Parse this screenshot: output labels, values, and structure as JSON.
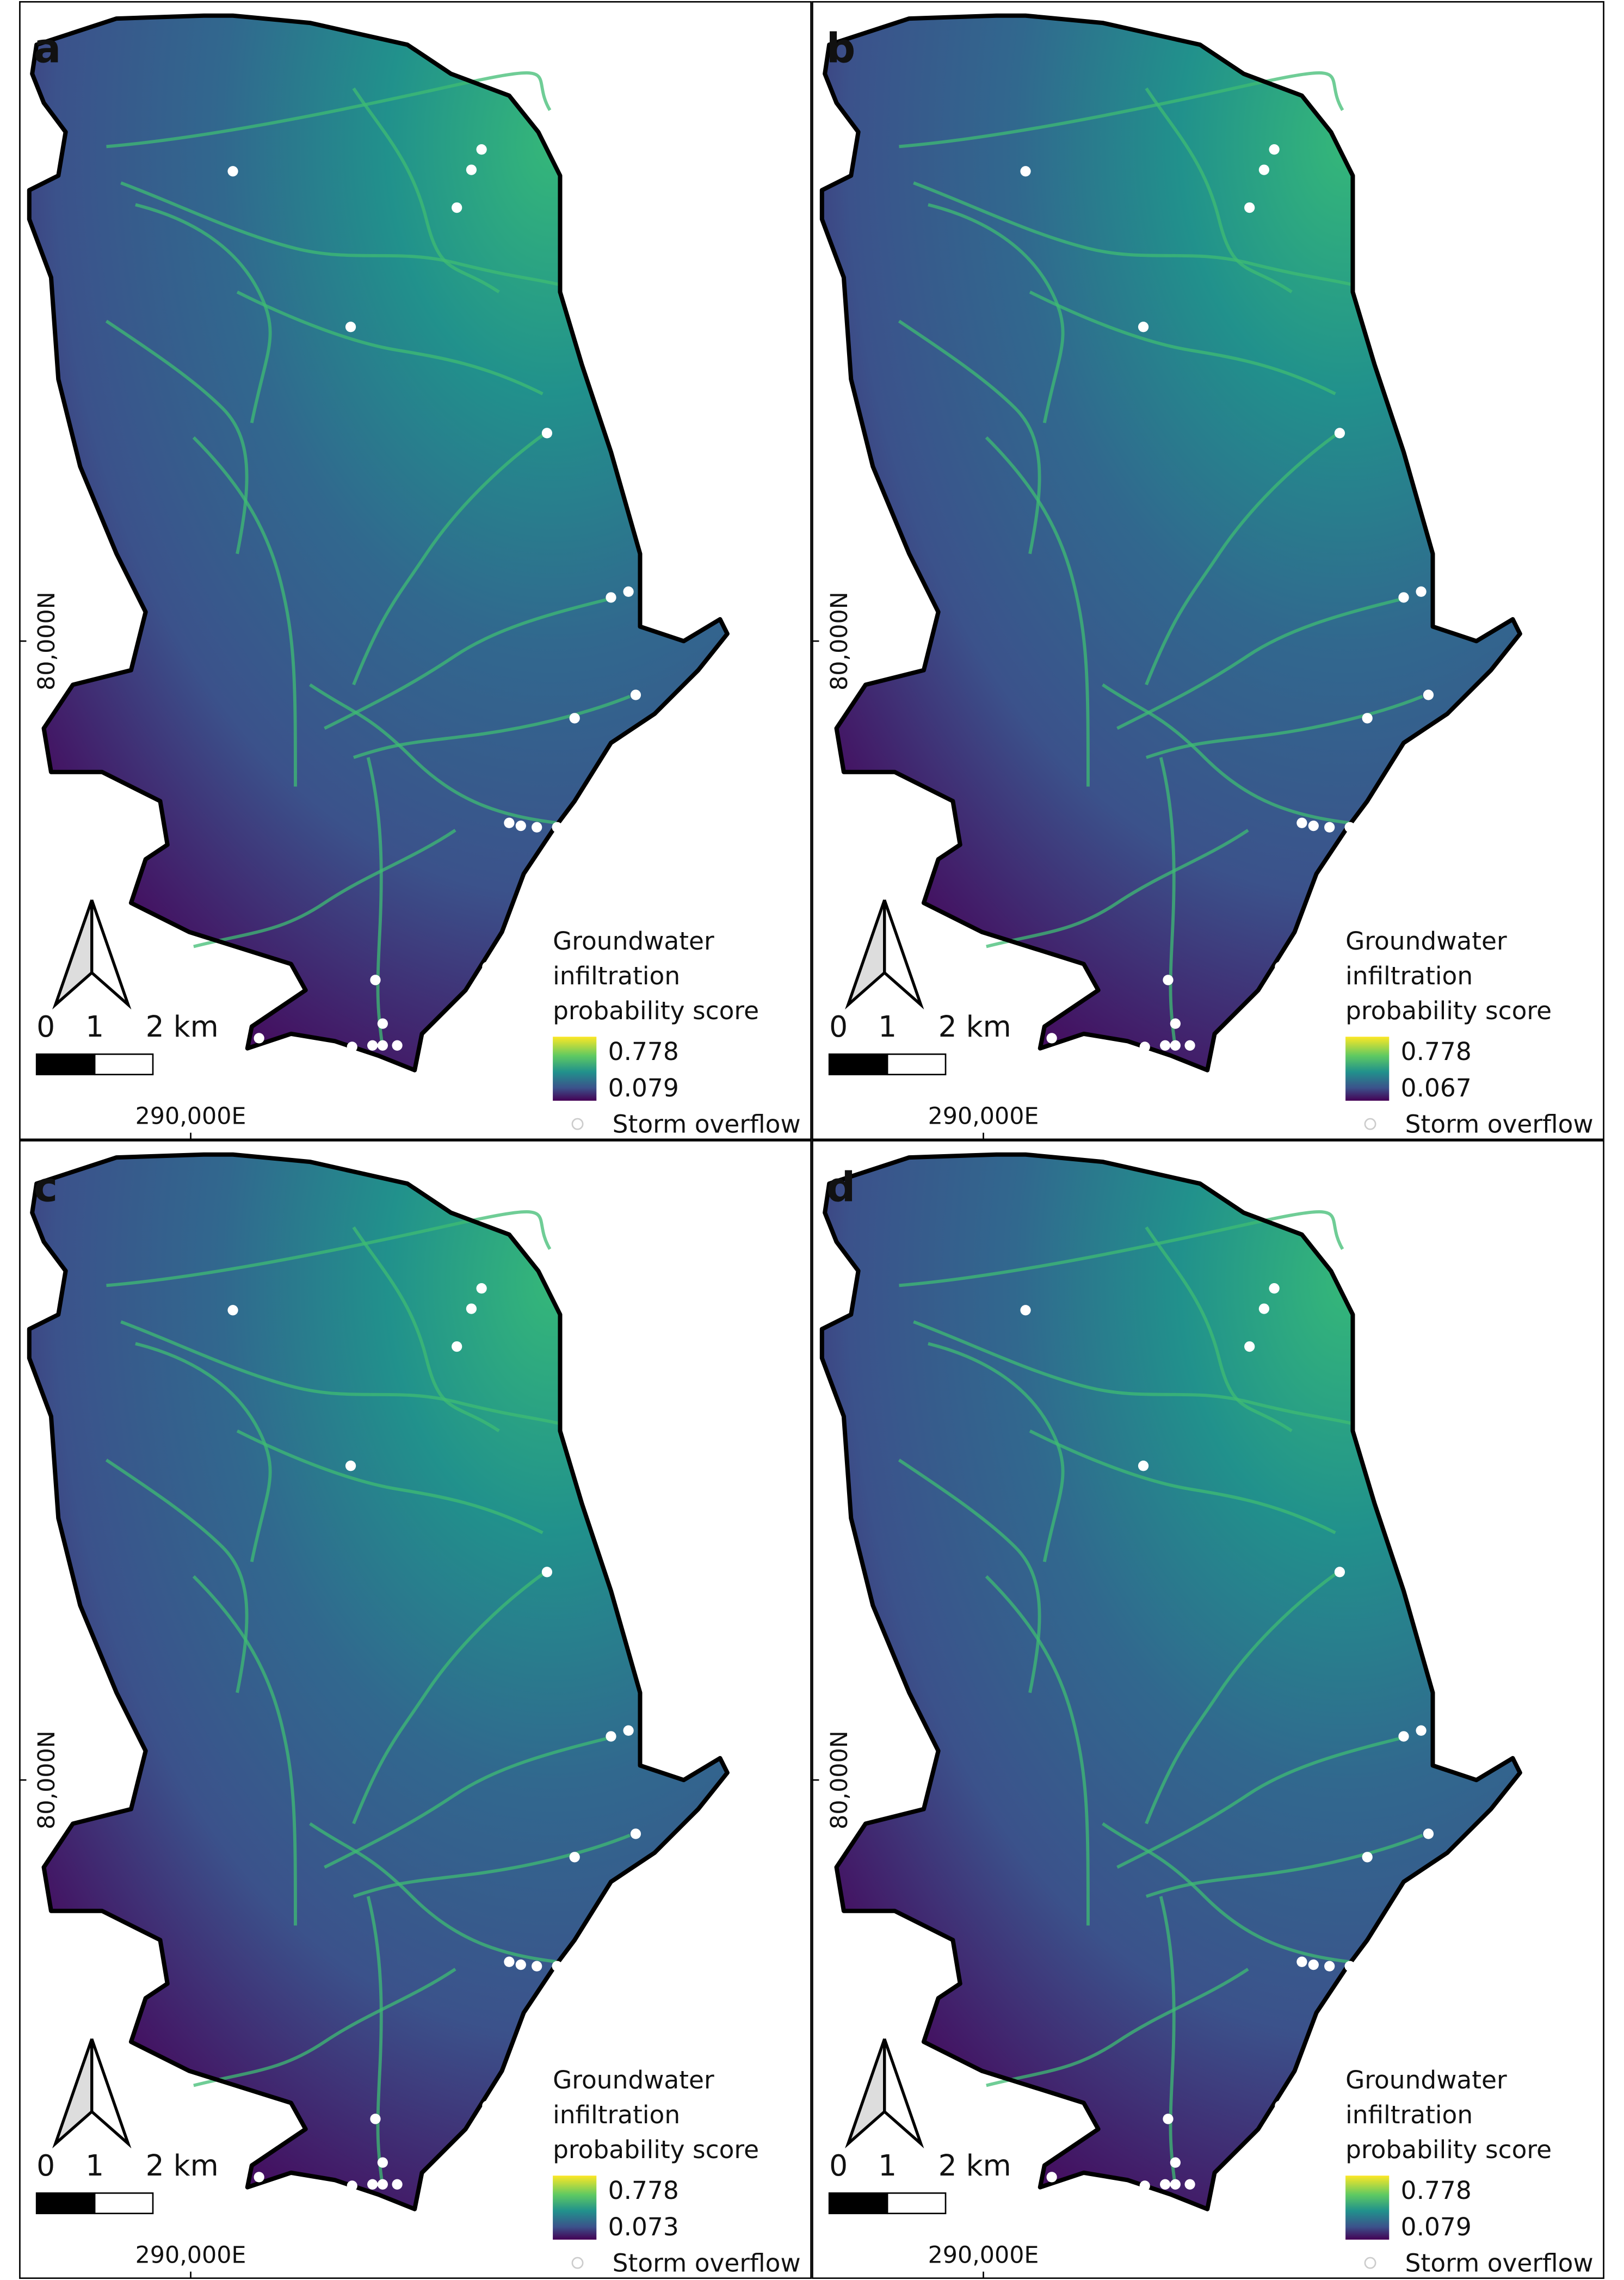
{
  "panels": [
    {
      "label": "a",
      "legend": {
        "title": [
          "Groundwater",
          "infiltration",
          "probability score"
        ],
        "max": 0.778,
        "min": 0.079,
        "overflow": "Storm overflow"
      },
      "scale": [
        "0",
        "1",
        "2 km"
      ],
      "easting": "290,000E",
      "northing": "80,000N"
    },
    {
      "label": "b",
      "legend": {
        "title": [
          "Groundwater",
          "infiltration",
          "probability score"
        ],
        "max": 0.778,
        "min": 0.067,
        "overflow": "Storm overflow"
      },
      "scale": [
        "0",
        "1",
        "2 km"
      ],
      "easting": "290,000E",
      "northing": "80,000N"
    },
    {
      "label": "c",
      "legend": {
        "title": [
          "Groundwater",
          "infiltration",
          "probability score"
        ],
        "max": 0.778,
        "min": 0.073,
        "overflow": "Storm overflow"
      },
      "scale": [
        "0",
        "1",
        "2 km"
      ],
      "easting": "290,000E",
      "northing": "80,000N"
    },
    {
      "label": "d",
      "legend": {
        "title": [
          "Groundwater",
          "infiltration",
          "probability score"
        ],
        "max": 0.778,
        "min": 0.079,
        "overflow": "Storm overflow"
      },
      "scale": [
        "0",
        "1",
        "2 km"
      ],
      "easting": "290,000E",
      "northing": "80,000N"
    }
  ]
}
